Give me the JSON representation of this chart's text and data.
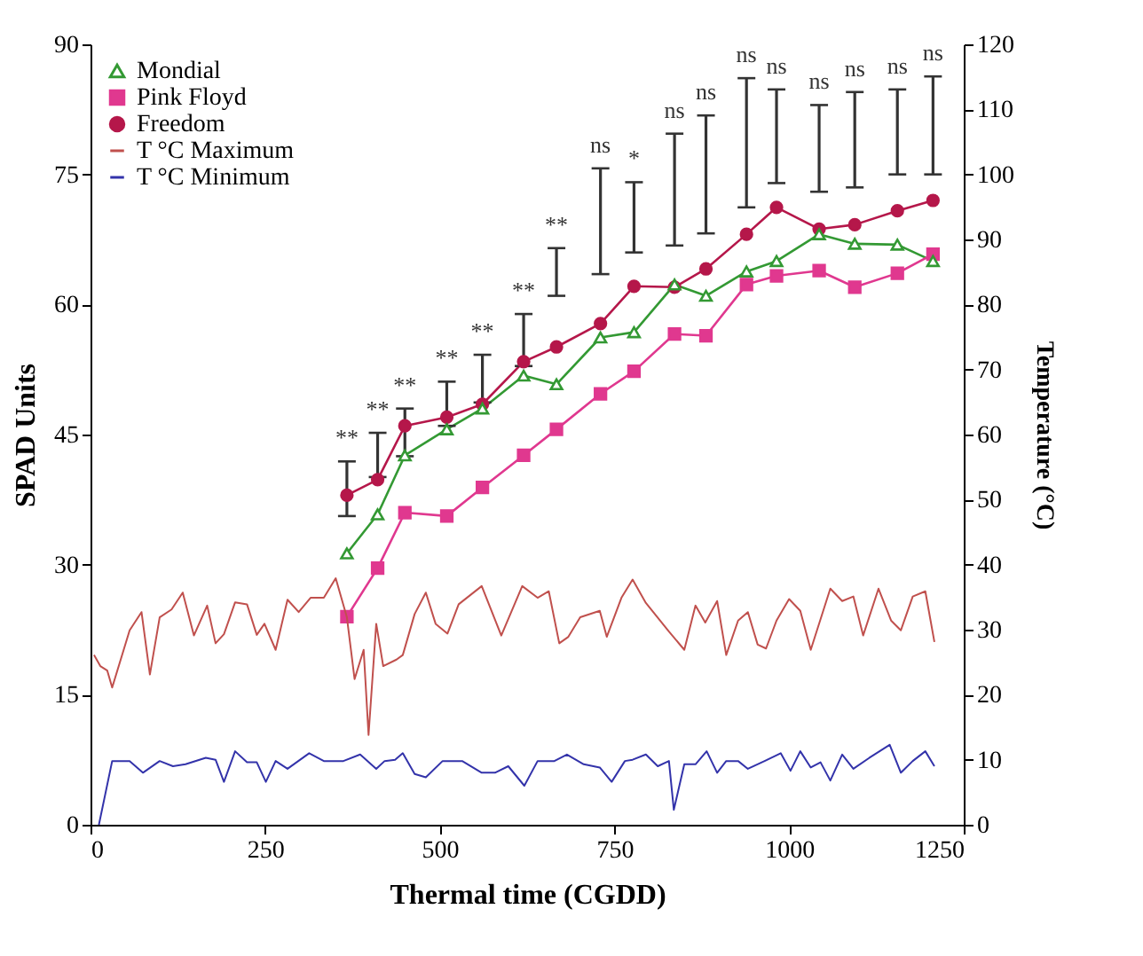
{
  "chart_data": {
    "type": "line",
    "xlabel": "Thermal time (CGDD)",
    "ylabel": "SPAD Units",
    "y2label": "Temperature (°C)",
    "legend": "top left",
    "x": [
      367,
      411,
      450,
      510,
      561,
      620,
      667,
      730,
      778,
      836,
      881,
      939,
      982,
      1043,
      1094,
      1155,
      1206
    ],
    "xlim": [
      0,
      1250
    ],
    "xticks": [
      0,
      250,
      500,
      750,
      1000,
      1250
    ],
    "ylim": [
      0,
      90
    ],
    "yticks": [
      0,
      15,
      30,
      45,
      60,
      75,
      90
    ],
    "y2lim": [
      0,
      120
    ],
    "y2ticks": [
      0,
      10,
      20,
      30,
      40,
      50,
      60,
      70,
      80,
      90,
      100,
      110,
      120
    ],
    "series": [
      {
        "name": "Mondial",
        "color": "#339933",
        "marker": "triangle",
        "values": [
          31.3,
          35.8,
          42.6,
          45.6,
          48.0,
          51.8,
          50.8,
          56.2,
          56.8,
          62.3,
          61.0,
          63.8,
          65.0,
          68.1,
          67.0,
          66.9,
          65.0
        ]
      },
      {
        "name": "Pink Floyd",
        "color": "#e0388f",
        "marker": "square",
        "values": [
          24.0,
          29.6,
          36.0,
          35.6,
          38.9,
          42.6,
          45.6,
          49.7,
          52.3,
          56.6,
          56.4,
          62.3,
          63.3,
          63.9,
          62.0,
          63.6,
          65.8
        ]
      },
      {
        "name": "Freedom",
        "color": "#b5174a",
        "marker": "circle",
        "values": [
          38.0,
          39.8,
          46.0,
          47.0,
          48.5,
          53.4,
          55.1,
          57.8,
          62.1,
          62.0,
          64.1,
          68.1,
          71.2,
          68.7,
          69.2,
          70.8,
          72.0
        ]
      },
      {
        "name": "T °C Maximum",
        "color": "#c0504d",
        "marker": "none",
        "axis": "y2",
        "x": [
          5,
          14,
          24,
          31,
          56,
          73,
          85,
          99,
          116,
          132,
          148,
          167,
          179,
          191,
          207,
          224,
          238,
          249,
          265,
          282,
          298,
          315,
          334,
          351,
          367,
          378,
          391,
          398,
          409,
          419,
          438,
          447,
          464,
          480,
          494,
          511,
          527,
          560,
          588,
          618,
          640,
          656,
          671,
          684,
          701,
          729,
          739,
          760,
          776,
          795,
          828,
          850,
          866,
          880,
          897,
          910,
          927,
          941,
          955,
          967,
          982,
          1000,
          1016,
          1031,
          1059,
          1076,
          1092,
          1106,
          1128,
          1146,
          1160,
          1177,
          1195,
          1208
        ],
        "values": [
          26.1,
          24.4,
          23.7,
          21.1,
          29.9,
          32.7,
          23.1,
          31.9,
          33.1,
          35.7,
          29.1,
          33.7,
          27.9,
          29.3,
          34.2,
          33.9,
          29.2,
          30.9,
          26.9,
          34.6,
          32.7,
          34.9,
          34.9,
          37.9,
          31.9,
          22.4,
          26.9,
          13.8,
          30.9,
          24.4,
          25.4,
          26.1,
          32.4,
          35.7,
          30.9,
          29.4,
          33.9,
          36.7,
          29.1,
          36.7,
          34.9,
          35.9,
          27.9,
          28.9,
          31.9,
          32.9,
          28.9,
          34.9,
          37.7,
          34.1,
          29.7,
          26.9,
          33.7,
          31.1,
          34.4,
          26.1,
          31.4,
          32.7,
          27.7,
          27.1,
          31.4,
          34.7,
          32.9,
          26.9,
          36.3,
          34.4,
          35.1,
          29.1,
          36.3,
          31.4,
          29.9,
          35.1,
          35.9,
          28.1
        ]
      },
      {
        "name": "T °C Minimum",
        "color": "#3333aa",
        "marker": "none",
        "axis": "y2",
        "x": [
          12,
          31,
          56,
          75,
          99,
          118,
          136,
          165,
          179,
          191,
          207,
          224,
          238,
          251,
          265,
          282,
          313,
          334,
          362,
          386,
          409,
          421,
          436,
          447,
          464,
          480,
          504,
          532,
          560,
          579,
          598,
          621,
          640,
          664,
          682,
          706,
          729,
          746,
          765,
          776,
          795,
          812,
          828,
          835,
          850,
          866,
          882,
          897,
          910,
          927,
          941,
          965,
          988,
          1002,
          1016,
          1031,
          1045,
          1059,
          1076,
          1092,
          1115,
          1144,
          1160,
          1177,
          1195,
          1208
        ],
        "values": [
          0,
          9.8,
          9.8,
          8.0,
          9.8,
          9.0,
          9.3,
          10.3,
          10.0,
          6.6,
          11.3,
          9.6,
          9.6,
          6.6,
          9.8,
          8.6,
          11.0,
          9.8,
          9.8,
          10.8,
          8.6,
          9.8,
          10.0,
          11.0,
          7.8,
          7.3,
          9.8,
          9.8,
          8.0,
          8.0,
          9.0,
          6.0,
          9.8,
          9.8,
          10.8,
          9.3,
          8.8,
          6.6,
          9.8,
          10.0,
          10.8,
          9.0,
          9.8,
          2.3,
          9.3,
          9.3,
          11.3,
          8.0,
          9.8,
          9.8,
          8.6,
          9.8,
          11.0,
          8.3,
          11.3,
          8.8,
          9.6,
          6.8,
          10.8,
          8.6,
          10.3,
          12.3,
          8.0,
          9.8,
          11.3,
          9.0
        ]
      },
      {
        "type": "bar",
        "color": "#333333",
        "base": [
          35.6,
          40.1,
          42.5,
          46.0,
          48.7,
          52.9,
          61.0,
          63.5,
          66.0,
          66.8,
          68.2,
          71.2,
          74.0,
          73.0,
          73.5,
          75.0,
          75.0
        ],
        "values": [
          6.3,
          5.1,
          5.5,
          5.1,
          5.5,
          6.0,
          5.5,
          12.2,
          8.1,
          12.9,
          13.6,
          14.9,
          10.8,
          10.0,
          11.0,
          9.8,
          11.3
        ],
        "value_labels": [
          "**",
          "**",
          "**",
          "**",
          "**",
          "**",
          "**",
          "ns",
          "*",
          "ns",
          "ns",
          "ns",
          "ns",
          "ns",
          "ns",
          "ns",
          "ns"
        ]
      }
    ]
  }
}
